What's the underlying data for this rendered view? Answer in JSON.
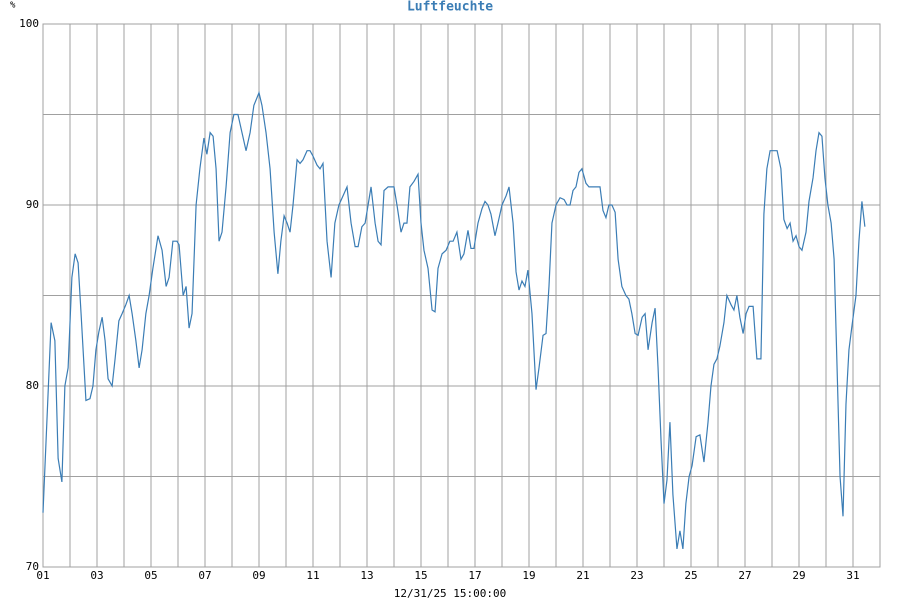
{
  "chart_data": {
    "type": "line",
    "title": "Luftfeuchte",
    "y_unit": "%",
    "x_label": "12/31/25 15:00:00",
    "xlim": [
      1,
      32
    ],
    "ylim": [
      70,
      100
    ],
    "xticks": [
      {
        "value": 1,
        "label": "01"
      },
      {
        "value": 3,
        "label": "03"
      },
      {
        "value": 5,
        "label": "05"
      },
      {
        "value": 7,
        "label": "07"
      },
      {
        "value": 9,
        "label": "09"
      },
      {
        "value": 11,
        "label": "11"
      },
      {
        "value": 13,
        "label": "13"
      },
      {
        "value": 15,
        "label": "15"
      },
      {
        "value": 17,
        "label": "17"
      },
      {
        "value": 19,
        "label": "19"
      },
      {
        "value": 21,
        "label": "21"
      },
      {
        "value": 23,
        "label": "23"
      },
      {
        "value": 25,
        "label": "25"
      },
      {
        "value": 27,
        "label": "27"
      },
      {
        "value": 29,
        "label": "29"
      },
      {
        "value": 31,
        "label": "31"
      }
    ],
    "xminor": [
      2,
      4,
      6,
      8,
      10,
      12,
      14,
      16,
      18,
      20,
      22,
      24,
      26,
      28,
      30
    ],
    "yticks": [
      70,
      80,
      90,
      100
    ],
    "yminor": [
      75,
      85,
      95
    ],
    "grid": true,
    "series": [
      {
        "name": "Luftfeuchte",
        "color": "#3b7db5",
        "x": [
          1.0,
          1.3,
          1.44,
          1.56,
          1.7,
          1.81,
          1.93,
          2.07,
          2.19,
          2.3,
          2.41,
          2.59,
          2.74,
          2.85,
          2.96,
          3.07,
          3.19,
          3.3,
          3.41,
          3.56,
          3.67,
          3.81,
          3.93,
          4.07,
          4.19,
          4.3,
          4.44,
          4.56,
          4.67,
          4.81,
          4.93,
          5.07,
          5.26,
          5.41,
          5.56,
          5.67,
          5.81,
          5.96,
          6.04,
          6.19,
          6.3,
          6.41,
          6.52,
          6.67,
          6.81,
          6.96,
          7.07,
          7.19,
          7.3,
          7.41,
          7.52,
          7.63,
          7.78,
          7.93,
          8.07,
          8.22,
          8.37,
          8.52,
          8.67,
          8.81,
          9.0,
          9.11,
          9.26,
          9.41,
          9.56,
          9.7,
          9.81,
          9.93,
          10.04,
          10.15,
          10.26,
          10.41,
          10.52,
          10.63,
          10.78,
          10.89,
          11.0,
          11.15,
          11.26,
          11.37,
          11.52,
          11.67,
          11.81,
          11.96,
          12.11,
          12.26,
          12.41,
          12.56,
          12.67,
          12.81,
          12.93,
          13.04,
          13.15,
          13.3,
          13.41,
          13.52,
          13.63,
          13.78,
          13.89,
          14.0,
          14.11,
          14.26,
          14.37,
          14.48,
          14.59,
          14.74,
          14.89,
          15.0,
          15.11,
          15.26,
          15.41,
          15.52,
          15.63,
          15.78,
          15.93,
          16.07,
          16.19,
          16.33,
          16.48,
          16.59,
          16.74,
          16.85,
          16.96,
          17.11,
          17.26,
          17.37,
          17.48,
          17.59,
          17.74,
          17.85,
          18.0,
          18.15,
          18.26,
          18.41,
          18.52,
          18.63,
          18.74,
          18.85,
          18.96,
          19.11,
          19.26,
          19.37,
          19.52,
          19.63,
          19.74,
          19.85,
          20.0,
          20.15,
          20.3,
          20.41,
          20.52,
          20.63,
          20.74,
          20.85,
          20.96,
          21.11,
          21.22,
          21.33,
          21.48,
          21.63,
          21.74,
          21.85,
          21.96,
          22.07,
          22.19,
          22.3,
          22.44,
          22.59,
          22.7,
          22.81,
          22.93,
          23.04,
          23.19,
          23.3,
          23.41,
          23.56,
          23.67,
          23.78,
          23.89,
          24.0,
          24.11,
          24.22,
          24.33,
          24.48,
          24.59,
          24.7,
          24.81,
          24.93,
          25.04,
          25.19,
          25.33,
          25.48,
          25.63,
          25.74,
          25.85,
          25.96,
          26.07,
          26.22,
          26.33,
          26.48,
          26.59,
          26.7,
          26.81,
          26.93,
          27.04,
          27.15,
          27.3,
          27.44,
          27.59,
          27.7,
          27.81,
          27.93,
          28.07,
          28.19,
          28.33,
          28.44,
          28.56,
          28.67,
          28.78,
          28.89,
          29.0,
          29.11,
          29.26,
          29.37,
          29.52,
          29.63,
          29.74,
          29.85,
          29.96,
          30.07,
          30.19,
          30.3,
          30.41,
          30.52,
          30.63,
          30.74,
          30.85,
          30.96,
          31.11,
          31.22,
          31.33,
          31.44
        ],
        "values": [
          73,
          83.5,
          82.5,
          76,
          74.7,
          80,
          81,
          86,
          87.3,
          86.8,
          84,
          79.2,
          79.3,
          80,
          82,
          83,
          83.8,
          82.5,
          80.4,
          80,
          81.5,
          83.6,
          84,
          84.5,
          85,
          84,
          82.5,
          81,
          82,
          84,
          85,
          86.5,
          88.3,
          87.5,
          85.5,
          86,
          88,
          88,
          87.8,
          85,
          85.5,
          83.2,
          84,
          90,
          92,
          93.7,
          92.8,
          94,
          93.8,
          92,
          88,
          88.5,
          91,
          94,
          95,
          95,
          94,
          93,
          94,
          95.5,
          96.2,
          95.5,
          94,
          92,
          88.5,
          86.2,
          88,
          89.4,
          89,
          88.5,
          90,
          92.5,
          92.3,
          92.5,
          93,
          93,
          92.7,
          92.2,
          92,
          92.3,
          88,
          86,
          89,
          90,
          90.5,
          91,
          89,
          87.7,
          87.7,
          88.8,
          89,
          90,
          91,
          89,
          88,
          87.8,
          90.8,
          91,
          91,
          91,
          90,
          88.5,
          89,
          89,
          91,
          91.3,
          91.7,
          89,
          87.5,
          86.5,
          84.2,
          84.1,
          86.5,
          87.3,
          87.5,
          88,
          88,
          88.5,
          87,
          87.3,
          88.6,
          87.6,
          87.6,
          89,
          89.8,
          90.2,
          90,
          89.5,
          88.3,
          89,
          90,
          90.5,
          91,
          89,
          86.3,
          85.3,
          85.8,
          85.5,
          86.4,
          84,
          79.8,
          81,
          82.8,
          82.9,
          85.5,
          89,
          90,
          90.4,
          90.3,
          90,
          90,
          90.8,
          91,
          91.8,
          92,
          91.2,
          91,
          91,
          91,
          91,
          89.7,
          89.3,
          90,
          90,
          89.6,
          87,
          85.5,
          85,
          84.8,
          84,
          82.9,
          82.8,
          83.8,
          84,
          82,
          83.5,
          84.3,
          81,
          77,
          73.5,
          74.8,
          78,
          74,
          71,
          72,
          71,
          73.5,
          75,
          75.6,
          77.2,
          77.3,
          75.8,
          78,
          80,
          81.2,
          81.5,
          82.2,
          83.5,
          85,
          84.5,
          84.2,
          85,
          83.8,
          82.9,
          84,
          84.4,
          84.4,
          81.5,
          81.5,
          89.5,
          92,
          93,
          93,
          93,
          92,
          89.2,
          88.7,
          89,
          88,
          88.3,
          87.7,
          87.5,
          88.5,
          90.2,
          91.5,
          93,
          94,
          93.8,
          91.5,
          90,
          89,
          87,
          81,
          75,
          72.8,
          79,
          82,
          83.3,
          85,
          88,
          90.2,
          88.8
        ]
      }
    ]
  }
}
